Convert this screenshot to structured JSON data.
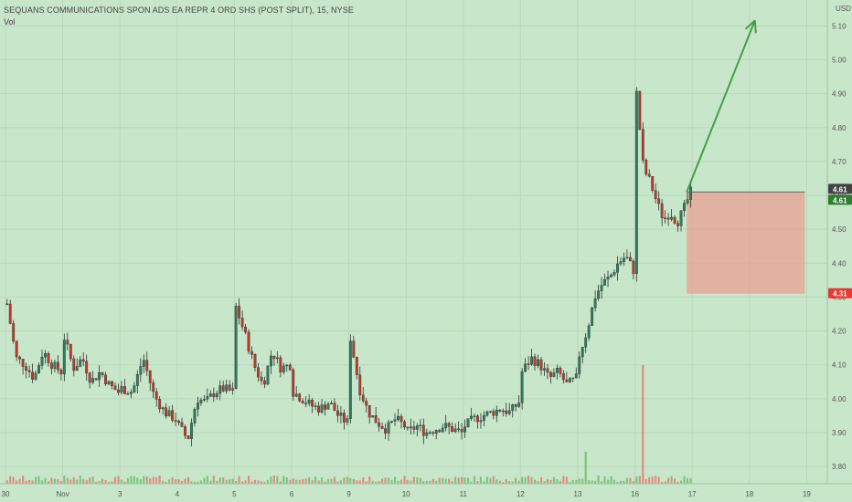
{
  "header": {
    "title": "SEQUANS COMMUNICATIONS SPON ADS EA REPR 4 ORD SHS (POST SPLIT), 15, NYSE",
    "volume_label": "Vol"
  },
  "chart_data": {
    "type": "candlestick",
    "currency": "USD",
    "y_ticks": [
      "5.10",
      "5.00",
      "4.90",
      "4.80",
      "4.70",
      "4.60",
      "4.50",
      "4.40",
      "4.30",
      "4.20",
      "4.10",
      "4.00",
      "3.90",
      "3.80"
    ],
    "ylim": [
      3.76,
      5.14
    ],
    "x_ticks": [
      "30",
      "Nov",
      "3",
      "4",
      "5",
      "6",
      "9",
      "10",
      "11",
      "12",
      "13",
      "16",
      "17",
      "18",
      "19"
    ],
    "price_badges": [
      {
        "value": "4.61",
        "color": "#424242"
      },
      {
        "value": "4.61",
        "color": "#2e7d32"
      },
      {
        "value": "4.31",
        "color": "#e53935"
      }
    ],
    "annotations": {
      "target_arrow": {
        "from_day": "17",
        "from_price": 4.61,
        "to_day": "18",
        "to_price": 5.1,
        "color": "#43a047"
      },
      "stop_zone": {
        "price_top": 4.61,
        "price_bottom": 4.31,
        "color": "#e8a090"
      }
    },
    "price_path": [
      {
        "day": "30",
        "prices": [
          4.28,
          4.12,
          4.1,
          4.06,
          4.14,
          4.1,
          4.08
        ]
      },
      {
        "day": "Nov",
        "prices": [
          4.18,
          4.09,
          4.12,
          4.05,
          4.08,
          4.04,
          4.02
        ]
      },
      {
        "day": "3",
        "prices": [
          4.03,
          4.02,
          4.12,
          4.01,
          3.96,
          3.94
        ]
      },
      {
        "day": "4",
        "prices": [
          3.92,
          3.88,
          4.0,
          3.99,
          4.02,
          4.03,
          4.02
        ]
      },
      {
        "day": "5",
        "prices": [
          4.27,
          4.19,
          4.1,
          4.04,
          4.14,
          4.09,
          4.1
        ]
      },
      {
        "day": "6",
        "prices": [
          4.02,
          4.0,
          3.98,
          3.97,
          3.99,
          3.95,
          3.93
        ]
      },
      {
        "day": "9",
        "prices": [
          4.18,
          4.03,
          3.96,
          3.93,
          3.91,
          3.94,
          3.92
        ]
      },
      {
        "day": "10",
        "prices": [
          3.9,
          3.92,
          3.9,
          3.91,
          3.92,
          3.91,
          3.9
        ]
      },
      {
        "day": "11",
        "prices": [
          3.92,
          3.94,
          3.95,
          3.96,
          3.97,
          3.96,
          3.99
        ]
      },
      {
        "day": "12",
        "prices": [
          4.08,
          4.12,
          4.1,
          4.06,
          4.08,
          4.04,
          4.06
        ]
      },
      {
        "day": "13",
        "prices": [
          4.13,
          4.2,
          4.3,
          4.34,
          4.36,
          4.4,
          4.42,
          4.38
        ]
      },
      {
        "day": "16",
        "prices": [
          4.9,
          4.68,
          4.64,
          4.58,
          4.53,
          4.55,
          4.52,
          4.56,
          4.61
        ]
      }
    ],
    "volume_spikes": [
      {
        "day": "13",
        "value": 35
      },
      {
        "day": "16",
        "value": 130
      }
    ]
  }
}
